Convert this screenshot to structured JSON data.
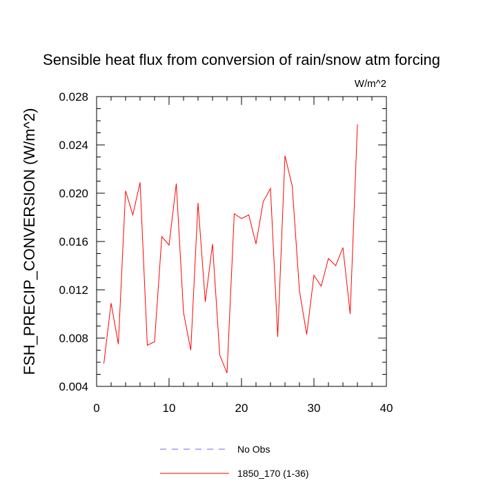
{
  "chart_data": {
    "type": "line",
    "title": "Sensible heat flux from conversion of rain/snow atm forcing",
    "units": "W/m^2",
    "xlabel": "",
    "ylabel": "FSH_PRECIP_CONVERSION  (W/m^2)",
    "xlim": [
      0,
      40
    ],
    "ylim": [
      0.004,
      0.028
    ],
    "x_ticks": [
      0,
      10,
      20,
      30,
      40
    ],
    "x_tick_labels": [
      "0",
      "10",
      "20",
      "30",
      "40"
    ],
    "y_ticks": [
      0.004,
      0.008,
      0.012,
      0.016,
      0.02,
      0.024,
      0.028
    ],
    "y_tick_labels": [
      "0.004",
      "0.008",
      "0.012",
      "0.016",
      "0.020",
      "0.024",
      "0.028"
    ],
    "grid": false,
    "series": [
      {
        "name": "1850_170 (1-36)",
        "color": "#ff0000",
        "style": "solid",
        "x": [
          1,
          2,
          3,
          4,
          5,
          6,
          7,
          8,
          9,
          10,
          11,
          12,
          13,
          14,
          15,
          16,
          17,
          18,
          19,
          20,
          21,
          22,
          23,
          24,
          25,
          26,
          27,
          28,
          29,
          30,
          31,
          32,
          33,
          34,
          35,
          36
        ],
        "values": [
          0.0059,
          0.0109,
          0.0075,
          0.0202,
          0.0182,
          0.0209,
          0.0074,
          0.0077,
          0.0164,
          0.0157,
          0.0208,
          0.0101,
          0.007,
          0.0192,
          0.011,
          0.0158,
          0.0066,
          0.0051,
          0.0183,
          0.0179,
          0.0182,
          0.0158,
          0.0193,
          0.0204,
          0.0081,
          0.0231,
          0.0206,
          0.0119,
          0.0083,
          0.0132,
          0.0123,
          0.0146,
          0.014,
          0.0155,
          0.01,
          0.0257
        ]
      }
    ],
    "legend": {
      "placement": "bottom-center",
      "entries": [
        {
          "label": "No Obs",
          "color": "#6666ff",
          "style": "dashed"
        },
        {
          "label": "1850_170 (1-36)",
          "color": "#ff0000",
          "style": "solid"
        }
      ]
    }
  }
}
